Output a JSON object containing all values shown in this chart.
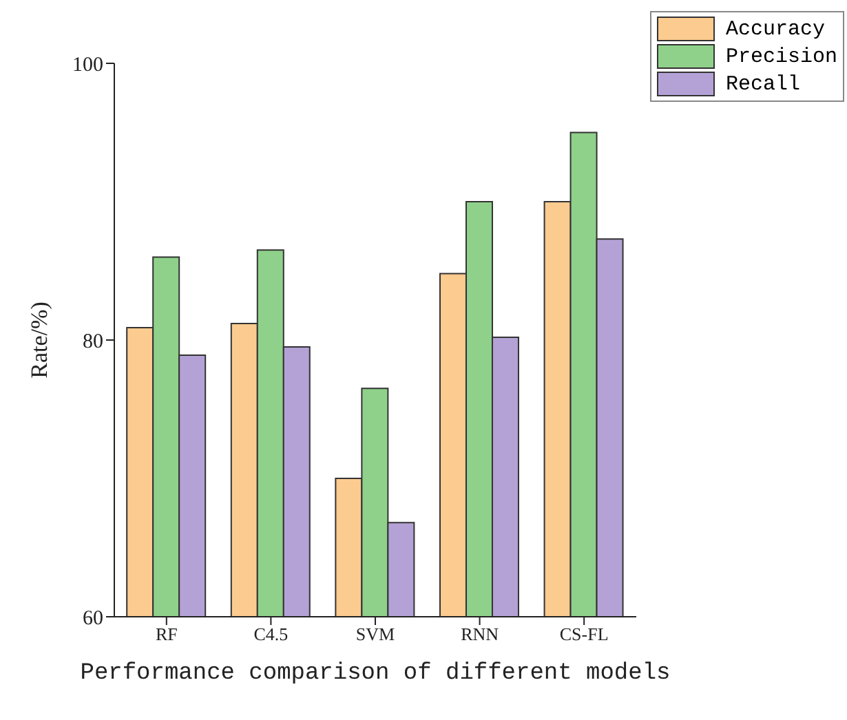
{
  "chart_data": {
    "type": "bar",
    "xlabel": "Performance comparison of different models",
    "ylabel": "Rate/%)",
    "categories": [
      "RF",
      "C4.5",
      "SVM",
      "RNN",
      "CS-FL"
    ],
    "series": [
      {
        "name": "Accuracy",
        "color": "#fccb8f",
        "values": [
          80.9,
          81.2,
          70.0,
          84.8,
          90.0
        ]
      },
      {
        "name": "Precision",
        "color": "#8fd18a",
        "values": [
          86.0,
          86.5,
          76.5,
          90.0,
          95.0
        ]
      },
      {
        "name": "Recall",
        "color": "#b4a2d6",
        "values": [
          78.9,
          79.5,
          66.8,
          80.2,
          87.3
        ]
      }
    ],
    "ylim": [
      60,
      100
    ],
    "yticks": [
      60,
      80,
      100
    ],
    "grid": false,
    "legend": "top right"
  }
}
